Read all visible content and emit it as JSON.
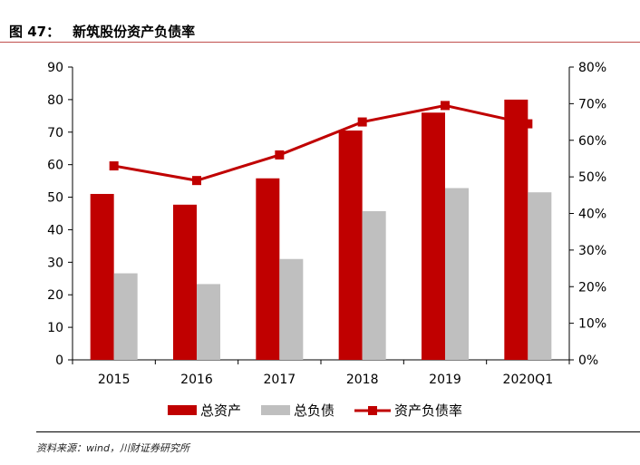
{
  "figure": {
    "label": "图 47：",
    "title": "新筑股份资产负债率",
    "source": "资料来源：wind，川财证券研究所"
  },
  "chart_data": {
    "type": "bar",
    "categories": [
      "2015",
      "2016",
      "2017",
      "2018",
      "2019",
      "2020Q1"
    ],
    "series": [
      {
        "name": "总资产",
        "type": "bar",
        "axis": "left",
        "color": "#c00000",
        "values": [
          51,
          47.7,
          55.8,
          70.5,
          76,
          80
        ]
      },
      {
        "name": "总负债",
        "type": "bar",
        "axis": "left",
        "color": "#bfbfbf",
        "values": [
          26.6,
          23.3,
          31,
          45.7,
          52.8,
          51.5
        ]
      },
      {
        "name": "资产负债率",
        "type": "line",
        "axis": "right",
        "color": "#c00000",
        "values": [
          0.53,
          0.49,
          0.56,
          0.65,
          0.695,
          0.645
        ]
      }
    ],
    "y_left": {
      "min": 0,
      "max": 90,
      "ticks": [
        "0",
        "10",
        "20",
        "30",
        "40",
        "50",
        "60",
        "70",
        "80",
        "90"
      ]
    },
    "y_right": {
      "min": 0,
      "max": 0.8,
      "ticks": [
        "0%",
        "10%",
        "20%",
        "30%",
        "40%",
        "50%",
        "60%",
        "70%",
        "80%"
      ]
    },
    "legend_position": "bottom",
    "grid": false
  }
}
